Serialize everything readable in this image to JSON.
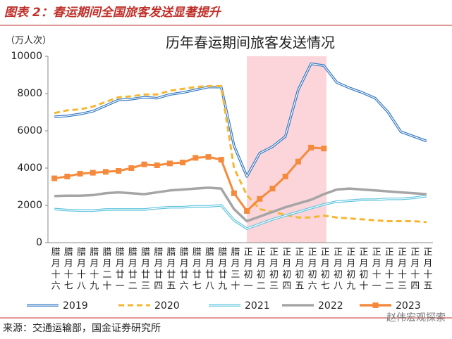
{
  "header": "图表 2：春运期间全国旅客发送显著提升",
  "source": "来源：交通运输部，国金证券研究所",
  "watermark": "赵伟宏观探索",
  "chart_data": {
    "type": "line",
    "title": "历年春运期间旅客发送情况",
    "y_label": "（万人次）",
    "categories": [
      "腊月十六",
      "腊月十七",
      "腊月十八",
      "腊月十九",
      "腊月二十",
      "腊月廿一",
      "腊月廿二",
      "腊月廿三",
      "腊月廿四",
      "腊月廿五",
      "腊月廿六",
      "腊月廿七",
      "腊月廿八",
      "腊月廿九",
      "腊月三十",
      "正月初一",
      "正月初二",
      "正月初三",
      "正月初四",
      "正月初五",
      "正月初六",
      "正月初七",
      "正月初八",
      "正月初九",
      "正月初十",
      "正月十一",
      "正月十二",
      "正月十三",
      "正月十四",
      "正月十五"
    ],
    "highlight_range": [
      "正月初一",
      "正月初七"
    ],
    "highlight_color": "#fbd5da",
    "ylim": [
      0,
      10000
    ],
    "yticks": [
      0,
      2000,
      4000,
      6000,
      8000,
      10000
    ],
    "grid": false,
    "legend": "bottom",
    "series": [
      {
        "name": "2019",
        "color": "#2f75c0",
        "style": "double",
        "values": [
          6750,
          6800,
          6900,
          7050,
          7350,
          7650,
          7700,
          7800,
          7750,
          7950,
          8050,
          8200,
          8350,
          8350,
          5200,
          3550,
          4800,
          5150,
          5700,
          8200,
          9600,
          9500,
          8600,
          8300,
          8050,
          7750,
          7000,
          5950,
          5700,
          5450
        ]
      },
      {
        "name": "2020",
        "color": "#f5b731",
        "style": "dashed",
        "values": [
          6950,
          7100,
          7150,
          7300,
          7550,
          7800,
          7850,
          7950,
          7950,
          8150,
          8250,
          8350,
          8400,
          8400,
          4000,
          2550,
          1800,
          1650,
          1500,
          1350,
          1350,
          1450,
          1350,
          1300,
          1250,
          1200,
          1150,
          1150,
          1150,
          1100
        ]
      },
      {
        "name": "2021",
        "color": "#5cc3dd",
        "style": "double",
        "values": [
          1800,
          1750,
          1720,
          1720,
          1780,
          1780,
          1780,
          1780,
          1850,
          1900,
          1900,
          1950,
          1950,
          2000,
          1200,
          750,
          1000,
          1250,
          1450,
          1650,
          1850,
          2050,
          2200,
          2250,
          2300,
          2300,
          2350,
          2350,
          2400,
          2500
        ]
      },
      {
        "name": "2022",
        "color": "#a5a5a5",
        "style": "solid",
        "values": [
          2500,
          2520,
          2520,
          2550,
          2650,
          2700,
          2650,
          2600,
          2700,
          2800,
          2850,
          2900,
          2950,
          2900,
          1800,
          1150,
          1400,
          1650,
          1900,
          2100,
          2300,
          2600,
          2850,
          2900,
          2850,
          2800,
          2750,
          2700,
          2650,
          2600
        ]
      },
      {
        "name": "2023",
        "color": "#f58a3c",
        "style": "marker",
        "values": [
          3450,
          3550,
          3700,
          3750,
          3800,
          3850,
          4000,
          4200,
          4150,
          4250,
          4300,
          4550,
          4600,
          4450,
          2650,
          1700,
          2350,
          2900,
          3550,
          4350,
          5100,
          5050,
          null,
          null,
          null,
          null,
          null,
          null,
          null,
          null
        ]
      }
    ]
  }
}
